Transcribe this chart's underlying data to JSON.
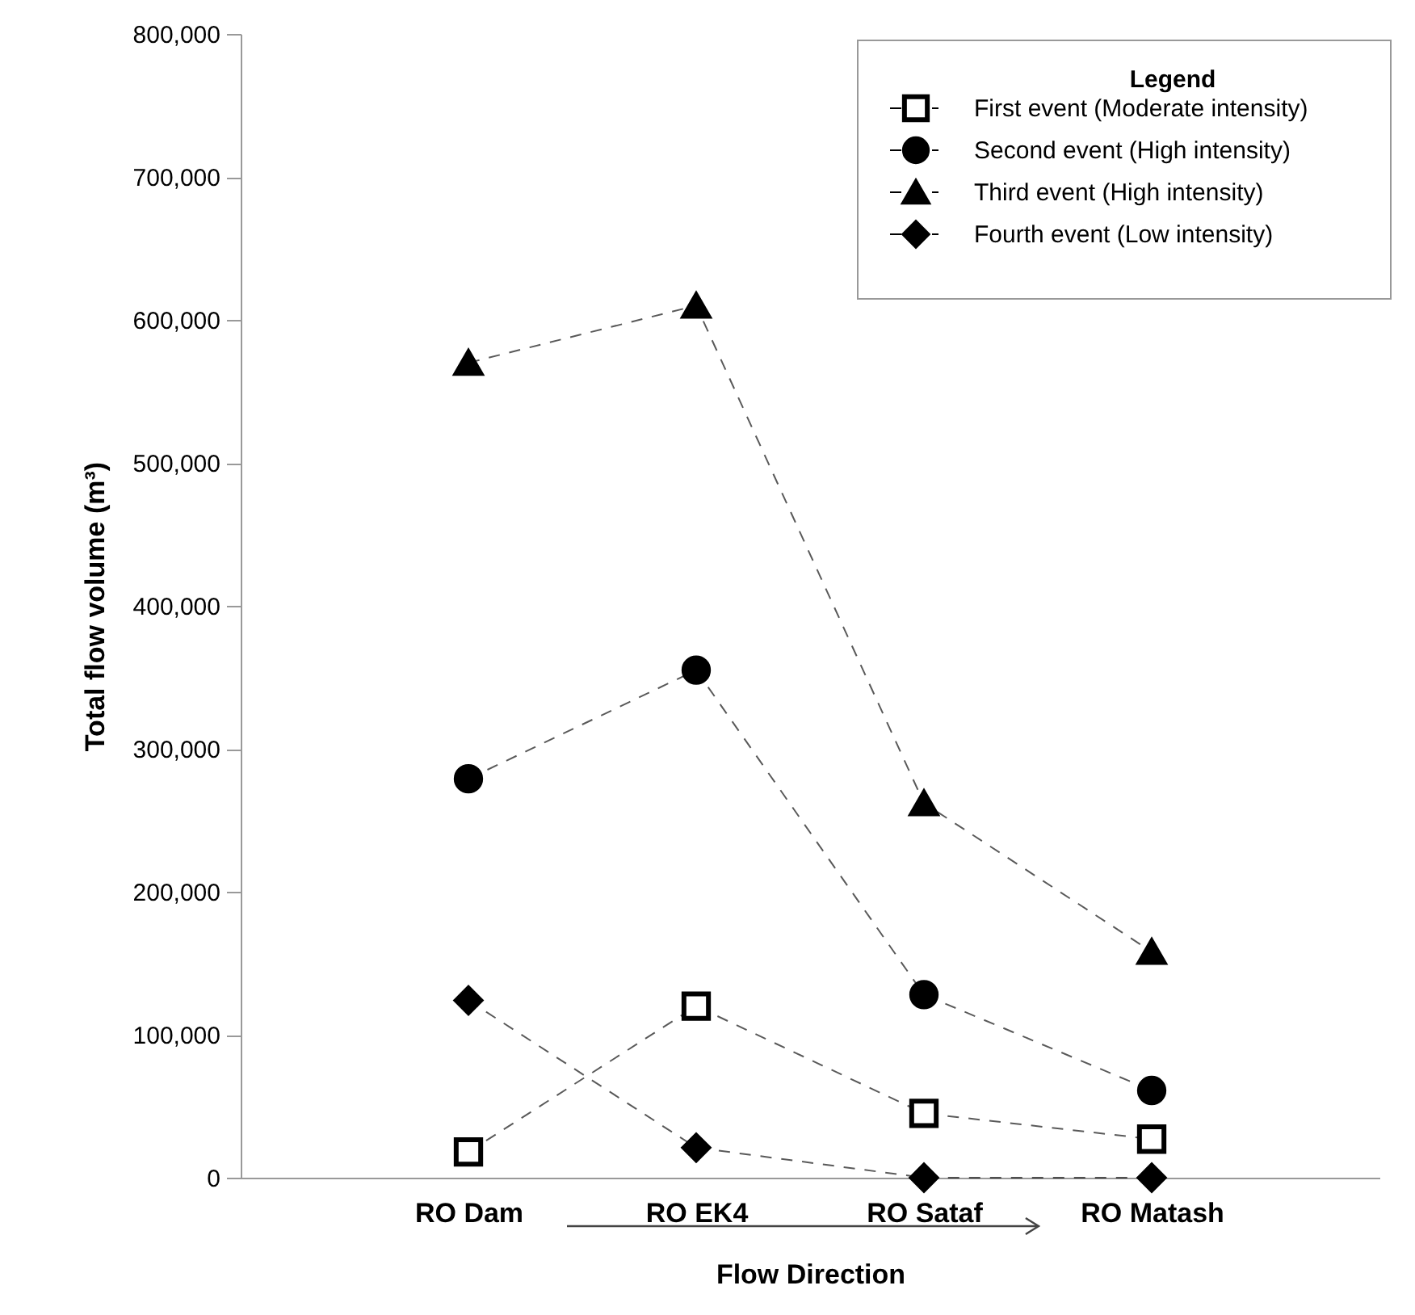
{
  "chart_data": {
    "type": "line",
    "xlabel": "Flow Direction",
    "ylabel": "Total flow volume (m³)",
    "legend_title": "Legend",
    "legend": "top right",
    "grid": false,
    "line_style": "dashed",
    "categories": [
      "RO Dam",
      "RO EK4",
      "RO Sataf",
      "RO Matash"
    ],
    "ylim": [
      0,
      800000
    ],
    "yticks": [
      {
        "value": 0,
        "label": "0"
      },
      {
        "value": 100000,
        "label": "100,000"
      },
      {
        "value": 200000,
        "label": "200,000"
      },
      {
        "value": 300000,
        "label": "300,000"
      },
      {
        "value": 400000,
        "label": "400,000"
      },
      {
        "value": 500000,
        "label": "500,000"
      },
      {
        "value": 600000,
        "label": "600,000"
      },
      {
        "value": 700000,
        "label": "700,000"
      },
      {
        "value": 800000,
        "label": "800,000"
      }
    ],
    "series": [
      {
        "name": "First event (Moderate intensity)",
        "color": "#000000",
        "marker": "square",
        "values": [
          18000,
          120000,
          45000,
          27000
        ]
      },
      {
        "name": "Second event (High intensity)",
        "color": "#000000",
        "marker": "circle",
        "values": [
          279000,
          355000,
          128000,
          61000
        ]
      },
      {
        "name": "Third event (High intensity)",
        "color": "#000000",
        "marker": "triangle",
        "values": [
          570000,
          610000,
          262000,
          158000
        ]
      },
      {
        "name": "Fourth event (Low intensity)",
        "color": "#000000",
        "marker": "diamond",
        "values": [
          124000,
          21000,
          0,
          0
        ]
      }
    ]
  }
}
